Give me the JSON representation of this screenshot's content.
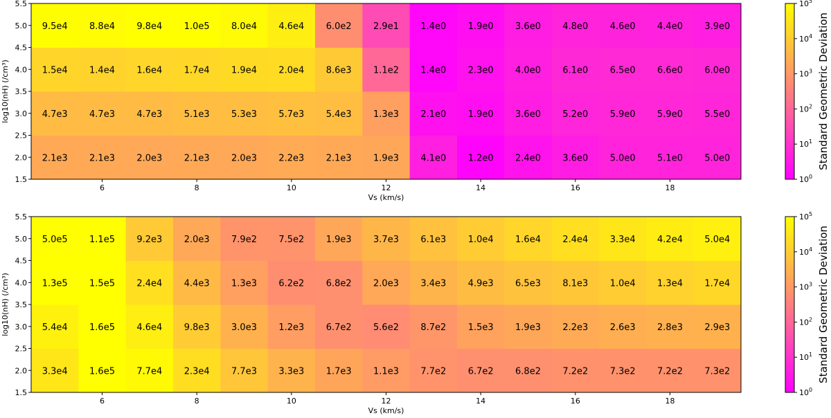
{
  "colors": {
    "low": "#ff00ff",
    "high": "#ffff00",
    "axis": "#000000",
    "text": "#000000"
  },
  "chart_data": [
    {
      "type": "heatmap",
      "xlabel": "Vs (km/s)",
      "ylabel": "log10(nH) (/cm³)",
      "x_values": [
        5,
        6,
        7,
        8,
        9,
        10,
        11,
        12,
        13,
        14,
        15,
        16,
        17,
        18,
        19
      ],
      "y_values": [
        2.0,
        3.0,
        4.0,
        5.0
      ],
      "xlim": [
        4.5,
        19.5
      ],
      "ylim": [
        1.5,
        5.5
      ],
      "xticks": [
        "6",
        "8",
        "10",
        "12",
        "14",
        "16",
        "18"
      ],
      "yticks": [
        "1.5",
        "2.0",
        "2.5",
        "3.0",
        "3.5",
        "4.0",
        "4.5",
        "5.0",
        "5.5"
      ],
      "rows": [
        [
          "2.1e3",
          "2.1e3",
          "2.0e3",
          "2.1e3",
          "2.0e3",
          "2.2e3",
          "2.1e3",
          "1.9e3",
          "4.1e0",
          "1.2e0",
          "2.4e0",
          "3.6e0",
          "5.0e0",
          "5.1e0",
          "5.0e0"
        ],
        [
          "4.7e3",
          "4.7e3",
          "4.7e3",
          "5.1e3",
          "5.3e3",
          "5.7e3",
          "5.4e3",
          "1.3e3",
          "2.1e0",
          "1.9e0",
          "3.6e0",
          "5.2e0",
          "5.9e0",
          "5.9e0",
          "5.5e0"
        ],
        [
          "1.5e4",
          "1.4e4",
          "1.6e4",
          "1.7e4",
          "1.9e4",
          "2.0e4",
          "8.6e3",
          "1.1e2",
          "1.4e0",
          "2.3e0",
          "4.0e0",
          "6.1e0",
          "6.5e0",
          "6.6e0",
          "6.0e0"
        ],
        [
          "9.5e4",
          "8.8e4",
          "9.8e4",
          "1.0e5",
          "8.0e4",
          "4.6e4",
          "6.0e2",
          "2.9e1",
          "1.4e0",
          "1.9e0",
          "3.6e0",
          "4.8e0",
          "4.6e0",
          "4.4e0",
          "3.9e0"
        ]
      ],
      "colorbar": {
        "label": "Standard Geometric Deviation",
        "scale": "log",
        "range": [
          1,
          100000
        ],
        "ticks": [
          "10",
          "10",
          "10",
          "10",
          "10",
          "10"
        ],
        "tick_exponents": [
          "0",
          "1",
          "2",
          "3",
          "4",
          "5"
        ]
      }
    },
    {
      "type": "heatmap",
      "xlabel": "Vs (km/s)",
      "ylabel": "log10(nH) (/cm³)",
      "x_values": [
        5,
        6,
        7,
        8,
        9,
        10,
        11,
        12,
        13,
        14,
        15,
        16,
        17,
        18,
        19
      ],
      "y_values": [
        2.0,
        3.0,
        4.0,
        5.0
      ],
      "xlim": [
        4.5,
        19.5
      ],
      "ylim": [
        1.5,
        5.5
      ],
      "xticks": [
        "6",
        "8",
        "10",
        "12",
        "14",
        "16",
        "18"
      ],
      "yticks": [
        "1.5",
        "2.0",
        "2.5",
        "3.0",
        "3.5",
        "4.0",
        "4.5",
        "5.0",
        "5.5"
      ],
      "rows": [
        [
          "3.3e4",
          "1.6e5",
          "7.7e4",
          "2.3e4",
          "7.7e3",
          "3.3e3",
          "1.7e3",
          "1.1e3",
          "7.7e2",
          "6.7e2",
          "6.8e2",
          "7.2e2",
          "7.3e2",
          "7.2e2",
          "7.3e2"
        ],
        [
          "5.4e4",
          "1.6e5",
          "4.6e4",
          "9.8e3",
          "3.0e3",
          "1.2e3",
          "6.7e2",
          "5.6e2",
          "8.7e2",
          "1.5e3",
          "1.9e3",
          "2.2e3",
          "2.6e3",
          "2.8e3",
          "2.9e3"
        ],
        [
          "1.3e5",
          "1.5e5",
          "2.4e4",
          "4.4e3",
          "1.3e3",
          "6.2e2",
          "6.8e2",
          "2.0e3",
          "3.4e3",
          "4.9e3",
          "6.5e3",
          "8.1e3",
          "1.0e4",
          "1.3e4",
          "1.7e4"
        ],
        [
          "5.0e5",
          "1.1e5",
          "9.2e3",
          "2.0e3",
          "7.9e2",
          "7.5e2",
          "1.9e3",
          "3.7e3",
          "6.1e3",
          "1.0e4",
          "1.6e4",
          "2.4e4",
          "3.3e4",
          "4.2e4",
          "5.0e4"
        ]
      ],
      "colorbar": {
        "label": "Standard Geometric Deviation",
        "scale": "log",
        "range": [
          1,
          100000
        ],
        "ticks": [
          "10",
          "10",
          "10",
          "10",
          "10",
          "10"
        ],
        "tick_exponents": [
          "0",
          "1",
          "2",
          "3",
          "4",
          "5"
        ]
      }
    }
  ]
}
